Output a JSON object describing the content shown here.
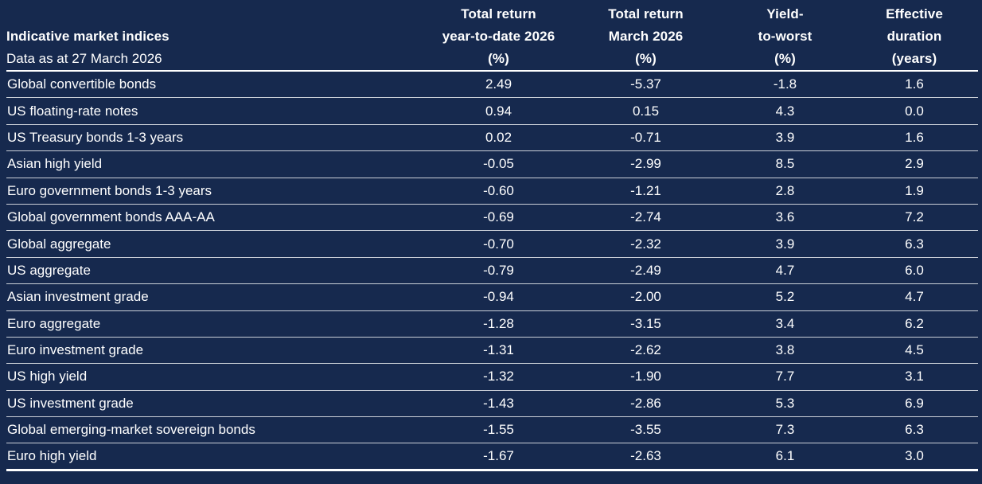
{
  "colors": {
    "background": "#16294E",
    "text_primary": "#FFFFFF",
    "row_line": "#C3CBDA",
    "strong_line": "#FFFFFF"
  },
  "table": {
    "title": "Indicative market indices",
    "subtitle": "Data as at 27 March 2026",
    "columns": [
      {
        "line1": "Total return",
        "line2": "year-to-date 2026",
        "line3": "(%)"
      },
      {
        "line1": "Total return",
        "line2": "March 2026",
        "line3": "(%)"
      },
      {
        "line1": "Yield-",
        "line2": "to-worst",
        "line3": "(%)"
      },
      {
        "line1": "Effective",
        "line2": "duration",
        "line3": "(years)"
      }
    ],
    "rows": [
      {
        "label": "Global convertible bonds",
        "values": [
          "2.49",
          "-5.37",
          "-1.8",
          "1.6"
        ]
      },
      {
        "label": "US floating-rate notes",
        "values": [
          "0.94",
          "0.15",
          "4.3",
          "0.0"
        ]
      },
      {
        "label": "US Treasury bonds 1-3 years",
        "values": [
          "0.02",
          "-0.71",
          "3.9",
          "1.6"
        ]
      },
      {
        "label": "Asian high yield",
        "values": [
          "-0.05",
          "-2.99",
          "8.5",
          "2.9"
        ]
      },
      {
        "label": "Euro government bonds 1-3 years",
        "values": [
          "-0.60",
          "-1.21",
          "2.8",
          "1.9"
        ]
      },
      {
        "label": "Global government bonds AAA-AA",
        "values": [
          "-0.69",
          "-2.74",
          "3.6",
          "7.2"
        ]
      },
      {
        "label": "Global aggregate",
        "values": [
          "-0.70",
          "-2.32",
          "3.9",
          "6.3"
        ]
      },
      {
        "label": "US aggregate",
        "values": [
          "-0.79",
          "-2.49",
          "4.7",
          "6.0"
        ]
      },
      {
        "label": "Asian investment grade",
        "values": [
          "-0.94",
          "-2.00",
          "5.2",
          "4.7"
        ]
      },
      {
        "label": "Euro aggregate",
        "values": [
          "-1.28",
          "-3.15",
          "3.4",
          "6.2"
        ]
      },
      {
        "label": "Euro investment grade",
        "values": [
          "-1.31",
          "-2.62",
          "3.8",
          "4.5"
        ]
      },
      {
        "label": "US high yield",
        "values": [
          "-1.32",
          "-1.90",
          "7.7",
          "3.1"
        ]
      },
      {
        "label": "US investment grade",
        "values": [
          "-1.43",
          "-2.86",
          "5.3",
          "6.9"
        ]
      },
      {
        "label": "Global emerging-market sovereign bonds",
        "values": [
          "-1.55",
          "-3.55",
          "7.3",
          "6.3"
        ]
      },
      {
        "label": "Euro high yield",
        "values": [
          "-1.67",
          "-2.63",
          "6.1",
          "3.0"
        ]
      }
    ]
  },
  "chart_data": {
    "type": "table",
    "title": "Indicative market indices",
    "subtitle": "Data as at 27 March 2026",
    "columns": [
      "Total return year-to-date 2026 (%)",
      "Total return March 2026 (%)",
      "Yield-to-worst (%)",
      "Effective duration (years)"
    ],
    "rows": [
      {
        "index": "Global convertible bonds",
        "total_return_ytd_2026_pct": 2.49,
        "total_return_march_2026_pct": -5.37,
        "yield_to_worst_pct": -1.8,
        "effective_duration_years": 1.6
      },
      {
        "index": "US floating-rate notes",
        "total_return_ytd_2026_pct": 0.94,
        "total_return_march_2026_pct": 0.15,
        "yield_to_worst_pct": 4.3,
        "effective_duration_years": 0.0
      },
      {
        "index": "US Treasury bonds 1-3 years",
        "total_return_ytd_2026_pct": 0.02,
        "total_return_march_2026_pct": -0.71,
        "yield_to_worst_pct": 3.9,
        "effective_duration_years": 1.6
      },
      {
        "index": "Asian high yield",
        "total_return_ytd_2026_pct": -0.05,
        "total_return_march_2026_pct": -2.99,
        "yield_to_worst_pct": 8.5,
        "effective_duration_years": 2.9
      },
      {
        "index": "Euro government bonds 1-3 years",
        "total_return_ytd_2026_pct": -0.6,
        "total_return_march_2026_pct": -1.21,
        "yield_to_worst_pct": 2.8,
        "effective_duration_years": 1.9
      },
      {
        "index": "Global government bonds AAA-AA",
        "total_return_ytd_2026_pct": -0.69,
        "total_return_march_2026_pct": -2.74,
        "yield_to_worst_pct": 3.6,
        "effective_duration_years": 7.2
      },
      {
        "index": "Global aggregate",
        "total_return_ytd_2026_pct": -0.7,
        "total_return_march_2026_pct": -2.32,
        "yield_to_worst_pct": 3.9,
        "effective_duration_years": 6.3
      },
      {
        "index": "US aggregate",
        "total_return_ytd_2026_pct": -0.79,
        "total_return_march_2026_pct": -2.49,
        "yield_to_worst_pct": 4.7,
        "effective_duration_years": 6.0
      },
      {
        "index": "Asian investment grade",
        "total_return_ytd_2026_pct": -0.94,
        "total_return_march_2026_pct": -2.0,
        "yield_to_worst_pct": 5.2,
        "effective_duration_years": 4.7
      },
      {
        "index": "Euro aggregate",
        "total_return_ytd_2026_pct": -1.28,
        "total_return_march_2026_pct": -3.15,
        "yield_to_worst_pct": 3.4,
        "effective_duration_years": 6.2
      },
      {
        "index": "Euro investment grade",
        "total_return_ytd_2026_pct": -1.31,
        "total_return_march_2026_pct": -2.62,
        "yield_to_worst_pct": 3.8,
        "effective_duration_years": 4.5
      },
      {
        "index": "US high yield",
        "total_return_ytd_2026_pct": -1.32,
        "total_return_march_2026_pct": -1.9,
        "yield_to_worst_pct": 7.7,
        "effective_duration_years": 3.1
      },
      {
        "index": "US investment grade",
        "total_return_ytd_2026_pct": -1.43,
        "total_return_march_2026_pct": -2.86,
        "yield_to_worst_pct": 5.3,
        "effective_duration_years": 6.9
      },
      {
        "index": "Global emerging-market sovereign bonds",
        "total_return_ytd_2026_pct": -1.55,
        "total_return_march_2026_pct": -3.55,
        "yield_to_worst_pct": 7.3,
        "effective_duration_years": 6.3
      },
      {
        "index": "Euro high yield",
        "total_return_ytd_2026_pct": -1.67,
        "total_return_march_2026_pct": -2.63,
        "yield_to_worst_pct": 6.1,
        "effective_duration_years": 3.0
      }
    ]
  }
}
